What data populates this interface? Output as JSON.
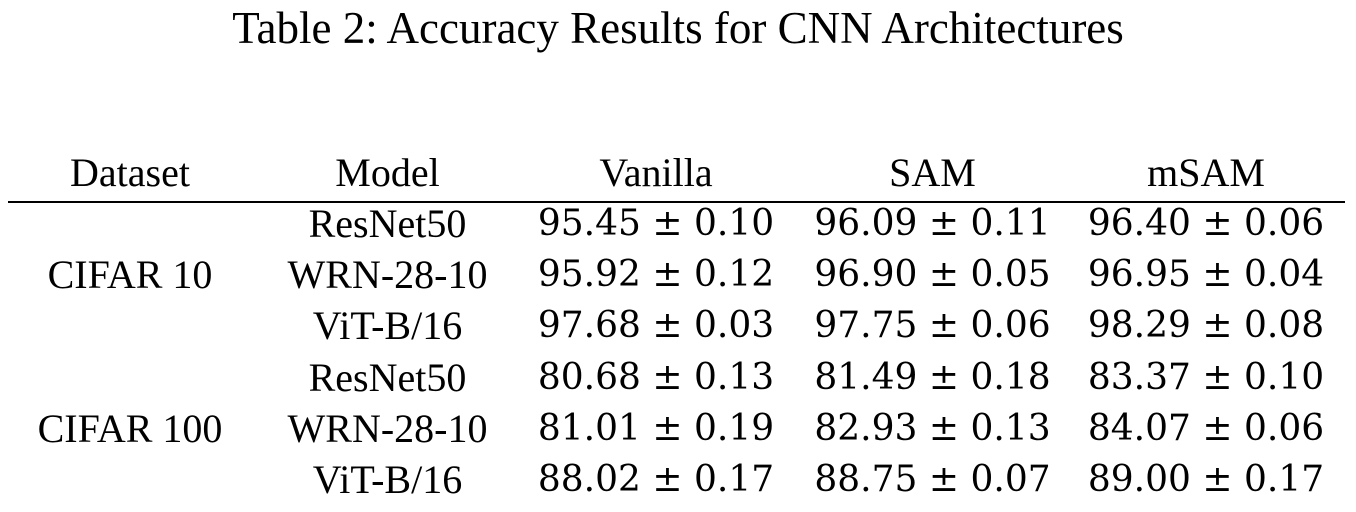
{
  "caption": "Table 2: Accuracy Results for CNN Architectures",
  "columns": {
    "dataset": "Dataset",
    "model": "Model",
    "vanilla": "Vanilla",
    "sam": "SAM",
    "msam": "mSAM"
  },
  "groups": [
    {
      "dataset": "CIFAR 10",
      "rows": [
        {
          "model": "ResNet50",
          "vanilla": "95.45 ± 0.10",
          "sam": "96.09 ± 0.11",
          "msam": "96.40 ± 0.06"
        },
        {
          "model": "WRN-28-10",
          "vanilla": "95.92 ± 0.12",
          "sam": "96.90 ± 0.05",
          "msam": "96.95 ± 0.04"
        },
        {
          "model": "ViT-B/16",
          "vanilla": "97.68 ± 0.03",
          "sam": "97.75 ± 0.06",
          "msam": "98.29 ± 0.08"
        }
      ]
    },
    {
      "dataset": "CIFAR 100",
      "rows": [
        {
          "model": "ResNet50",
          "vanilla": "80.68 ± 0.13",
          "sam": "81.49 ± 0.18",
          "msam": "83.37 ± 0.10"
        },
        {
          "model": "WRN-28-10",
          "vanilla": "81.01 ± 0.19",
          "sam": "82.93 ± 0.13",
          "msam": "84.07 ± 0.06"
        },
        {
          "model": "ViT-B/16",
          "vanilla": "88.02 ± 0.17",
          "sam": "88.75 ± 0.07",
          "msam": "89.00 ± 0.17"
        }
      ]
    }
  ]
}
